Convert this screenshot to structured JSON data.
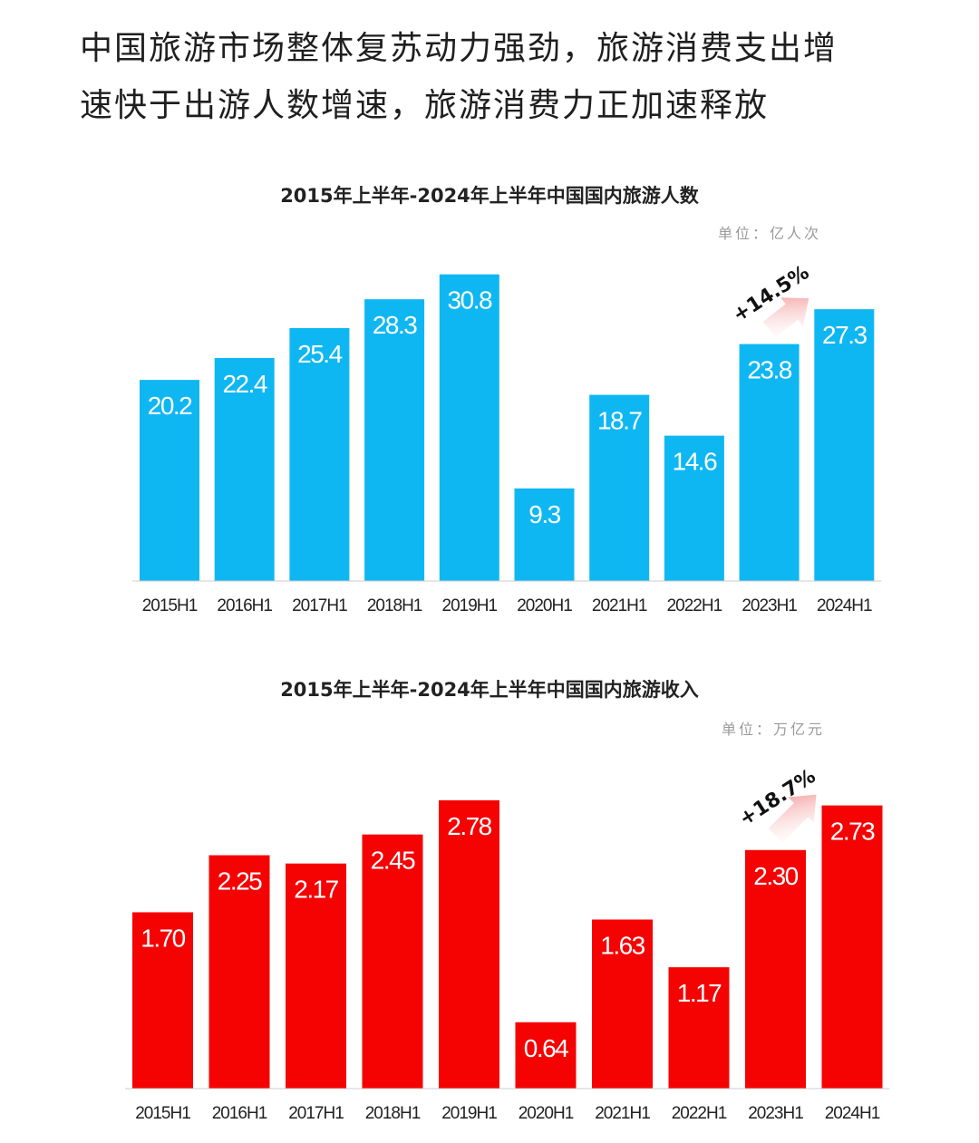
{
  "headline": {
    "line1": "中国旅游市场整体复苏动力强劲，旅游消费支出增",
    "line2": "速快于出游人数增速，旅游消费力正加速释放"
  },
  "colors": {
    "trips_bar": "#0FB7F2",
    "revenue_bar": "#F50303",
    "axis": "#cccccc",
    "growth_arrow": "#F28C8C"
  },
  "chart_data": [
    {
      "type": "bar",
      "title": "2015年上半年-2024年上半年中国国内旅游人数",
      "unit_label": "单位：亿人次",
      "categories": [
        "2015H1",
        "2016H1",
        "2017H1",
        "2018H1",
        "2019H1",
        "2020H1",
        "2021H1",
        "2022H1",
        "2023H1",
        "2024H1"
      ],
      "values": [
        20.2,
        22.4,
        25.4,
        28.3,
        30.8,
        9.3,
        18.7,
        14.6,
        23.8,
        27.3
      ],
      "value_labels": [
        "20.2",
        "22.4",
        "25.4",
        "28.3",
        "30.8",
        "9.3",
        "18.7",
        "14.6",
        "23.8",
        "27.3"
      ],
      "ylim": [
        0,
        31.5
      ],
      "grid": false,
      "annotation": {
        "text": "+14.5%",
        "from": "2023H1",
        "to": "2024H1"
      }
    },
    {
      "type": "bar",
      "title": "2015年上半年-2024年上半年中国国内旅游收入",
      "unit_label": "单位：万亿元",
      "categories": [
        "2015H1",
        "2016H1",
        "2017H1",
        "2018H1",
        "2019H1",
        "2020H1",
        "2021H1",
        "2022H1",
        "2023H1",
        "2024H1"
      ],
      "values": [
        1.7,
        2.25,
        2.17,
        2.45,
        2.78,
        0.64,
        1.63,
        1.17,
        2.3,
        2.73
      ],
      "value_labels": [
        "1.70",
        "2.25",
        "2.17",
        "2.45",
        "2.78",
        "0.64",
        "1.63",
        "1.17",
        "2.30",
        "2.73"
      ],
      "ylim": [
        0,
        2.84
      ],
      "grid": false,
      "annotation": {
        "text": "+18.7%",
        "from": "2023H1",
        "to": "2024H1"
      }
    }
  ]
}
